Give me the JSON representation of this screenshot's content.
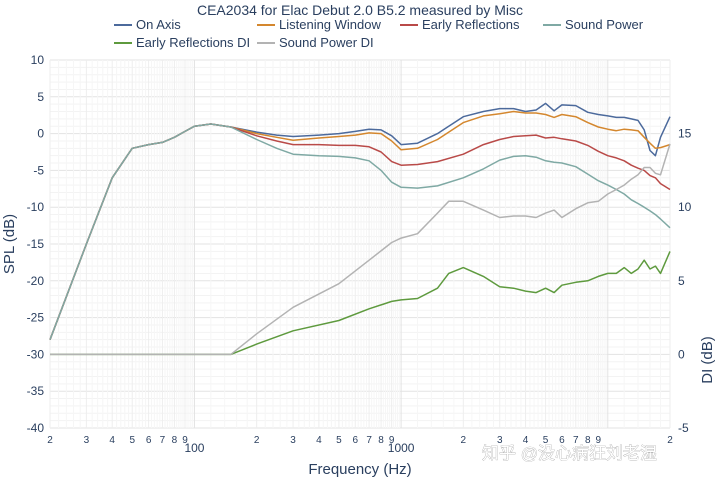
{
  "chart_data": {
    "type": "line",
    "title": "CEA2034 for Elac Debut 2.0 B5.2 measured by Misc",
    "xlabel": "Frequency (Hz)",
    "ylabel": "SPL (dB)",
    "y2label": "DI (dB)",
    "xscale": "log",
    "xlim": [
      20,
      20000
    ],
    "ylim": [
      -40,
      10
    ],
    "y2lim": [
      -5,
      20
    ],
    "x_tick_labels": {
      "major": [
        {
          "value": 100,
          "label": "100"
        },
        {
          "value": 1000,
          "label": "1000"
        }
      ],
      "minor": [
        {
          "value": 20,
          "label": "2"
        },
        {
          "value": 30,
          "label": "3"
        },
        {
          "value": 40,
          "label": "4"
        },
        {
          "value": 50,
          "label": "5"
        },
        {
          "value": 60,
          "label": "6"
        },
        {
          "value": 70,
          "label": "7"
        },
        {
          "value": 80,
          "label": "8"
        },
        {
          "value": 90,
          "label": "9"
        },
        {
          "value": 200,
          "label": "2"
        },
        {
          "value": 300,
          "label": "3"
        },
        {
          "value": 400,
          "label": "4"
        },
        {
          "value": 500,
          "label": "5"
        },
        {
          "value": 600,
          "label": "6"
        },
        {
          "value": 700,
          "label": "7"
        },
        {
          "value": 800,
          "label": "8"
        },
        {
          "value": 900,
          "label": "9"
        },
        {
          "value": 2000,
          "label": "2"
        },
        {
          "value": 3000,
          "label": "3"
        },
        {
          "value": 4000,
          "label": "4"
        },
        {
          "value": 5000,
          "label": "5"
        },
        {
          "value": 6000,
          "label": "6"
        },
        {
          "value": 7000,
          "label": "7"
        },
        {
          "value": 8000,
          "label": "8"
        },
        {
          "value": 9000,
          "label": "9"
        },
        {
          "value": 20000,
          "label": "2"
        }
      ]
    },
    "y_ticks": [
      10,
      5,
      0,
      -5,
      -10,
      -15,
      -20,
      -25,
      -30,
      -35,
      -40
    ],
    "y2_ticks": [
      15,
      10,
      5,
      0,
      -5
    ],
    "legend": "top",
    "series": [
      {
        "name": "On Axis",
        "axis": "y",
        "color": "#4c6a9c",
        "x": [
          20,
          30,
          40,
          50,
          60,
          70,
          80,
          90,
          100,
          120,
          150,
          200,
          250,
          300,
          400,
          500,
          600,
          700,
          800,
          900,
          1000,
          1200,
          1500,
          2000,
          2500,
          3000,
          3500,
          4000,
          4500,
          5000,
          5500,
          6000,
          7000,
          8000,
          9000,
          10000,
          11000,
          12000,
          13000,
          14000,
          15000,
          16000,
          17000,
          18000,
          20000
        ],
        "y": [
          -28,
          -15,
          -6,
          -2,
          -1.5,
          -1.2,
          -0.5,
          0.3,
          1,
          1.3,
          0.9,
          0.2,
          -0.2,
          -0.4,
          -0.2,
          0,
          0.3,
          0.6,
          0.5,
          -0.3,
          -1.5,
          -1.3,
          0,
          2.3,
          3,
          3.4,
          3.4,
          3,
          3.2,
          4.1,
          3.1,
          3.9,
          3.8,
          2.9,
          2.6,
          2.4,
          2.2,
          2.2,
          2,
          1.8,
          0.5,
          -2.3,
          -3,
          -0.5,
          2.3
        ]
      },
      {
        "name": "Listening Window",
        "axis": "y",
        "color": "#d4872e",
        "x": [
          20,
          30,
          40,
          50,
          60,
          70,
          80,
          90,
          100,
          120,
          150,
          200,
          250,
          300,
          400,
          500,
          600,
          700,
          800,
          900,
          1000,
          1200,
          1500,
          2000,
          2500,
          3000,
          3500,
          4000,
          4500,
          5000,
          5500,
          6000,
          7000,
          8000,
          9000,
          10000,
          11000,
          12000,
          13000,
          14000,
          15000,
          16000,
          17000,
          18000,
          20000
        ],
        "y": [
          -28,
          -15,
          -6,
          -2,
          -1.5,
          -1.2,
          -0.5,
          0.3,
          1,
          1.3,
          0.9,
          0,
          -0.5,
          -0.9,
          -0.6,
          -0.4,
          -0.2,
          0.1,
          0,
          -1,
          -2.2,
          -2,
          -0.8,
          1.5,
          2.4,
          2.7,
          3,
          2.8,
          2.8,
          2.6,
          2.2,
          2.6,
          2.3,
          1.5,
          0.9,
          0.6,
          0.4,
          0.6,
          0.5,
          0.4,
          -0.5,
          -1.3,
          -2,
          -1.9,
          -1.5
        ]
      },
      {
        "name": "Early Reflections",
        "axis": "y",
        "color": "#b94a48",
        "x": [
          20,
          30,
          40,
          50,
          60,
          70,
          80,
          90,
          100,
          120,
          150,
          200,
          250,
          300,
          400,
          500,
          600,
          700,
          800,
          900,
          1000,
          1200,
          1500,
          2000,
          2500,
          3000,
          3500,
          4000,
          4500,
          5000,
          5500,
          6000,
          7000,
          8000,
          9000,
          10000,
          11000,
          12000,
          13000,
          14000,
          15000,
          16000,
          17000,
          18000,
          20000
        ],
        "y": [
          -28,
          -15,
          -6,
          -2,
          -1.5,
          -1.2,
          -0.5,
          0.3,
          1,
          1.3,
          0.9,
          -0.3,
          -1,
          -1.5,
          -1.5,
          -1.6,
          -1.6,
          -1.8,
          -2.5,
          -3.8,
          -4.3,
          -4.2,
          -3.8,
          -2.8,
          -1.5,
          -0.8,
          -0.4,
          -0.3,
          -0.2,
          -0.6,
          -0.5,
          -0.7,
          -1,
          -1.6,
          -2.4,
          -3,
          -3.3,
          -3.7,
          -4.3,
          -4.7,
          -5,
          -5.7,
          -6,
          -6.8,
          -7.6
        ]
      },
      {
        "name": "Sound Power",
        "axis": "y",
        "color": "#7fa9a4",
        "x": [
          20,
          30,
          40,
          50,
          60,
          70,
          80,
          90,
          100,
          120,
          150,
          200,
          250,
          300,
          400,
          500,
          600,
          700,
          800,
          900,
          1000,
          1200,
          1500,
          2000,
          2500,
          3000,
          3500,
          4000,
          4500,
          5000,
          5500,
          6000,
          7000,
          8000,
          9000,
          10000,
          11000,
          12000,
          13000,
          14000,
          15000,
          16000,
          17000,
          18000,
          20000
        ],
        "y": [
          -28,
          -15,
          -6,
          -2,
          -1.5,
          -1.2,
          -0.5,
          0.3,
          1,
          1.3,
          0.9,
          -0.8,
          -2,
          -2.8,
          -3,
          -3.1,
          -3.3,
          -3.7,
          -5,
          -6.6,
          -7.3,
          -7.4,
          -7.1,
          -6,
          -4.8,
          -3.6,
          -3.1,
          -3,
          -3.2,
          -3.7,
          -3.9,
          -4,
          -4.5,
          -5.5,
          -6.4,
          -7,
          -7.6,
          -8.2,
          -9,
          -9.5,
          -10,
          -10.5,
          -11,
          -11.6,
          -12.8
        ]
      },
      {
        "name": "Early Reflections DI",
        "axis": "y2",
        "color": "#5e9a3e",
        "x": [
          20,
          40,
          60,
          80,
          100,
          120,
          150,
          200,
          300,
          500,
          700,
          900,
          1000,
          1200,
          1500,
          1700,
          2000,
          2500,
          3000,
          3500,
          4000,
          4500,
          5000,
          5500,
          6000,
          7000,
          8000,
          9000,
          10000,
          11000,
          12000,
          13000,
          14000,
          15000,
          16000,
          17000,
          18000,
          20000
        ],
        "y": [
          0,
          0,
          0,
          0,
          0,
          0,
          0,
          0.7,
          1.6,
          2.3,
          3.1,
          3.6,
          3.7,
          3.8,
          4.5,
          5.5,
          5.9,
          5.3,
          4.6,
          4.5,
          4.3,
          4.2,
          4.5,
          4.2,
          4.7,
          4.9,
          5,
          5.3,
          5.5,
          5.5,
          5.9,
          5.5,
          5.8,
          6.4,
          5.8,
          6,
          5.5,
          7
        ]
      },
      {
        "name": "Sound Power DI",
        "axis": "y2",
        "color": "#b3b3b3",
        "x": [
          20,
          40,
          60,
          80,
          100,
          120,
          150,
          200,
          300,
          500,
          700,
          900,
          1000,
          1200,
          1500,
          1700,
          2000,
          2500,
          3000,
          3500,
          4000,
          4500,
          5000,
          5500,
          6000,
          7000,
          8000,
          9000,
          10000,
          11000,
          12000,
          13000,
          14000,
          15000,
          16000,
          17000,
          18000,
          20000
        ],
        "y": [
          0,
          0,
          0,
          0,
          0,
          0,
          0,
          1.4,
          3.2,
          4.8,
          6.4,
          7.6,
          7.9,
          8.2,
          9.6,
          10.4,
          10.4,
          9.8,
          9.3,
          9.4,
          9.4,
          9.3,
          9.6,
          9.8,
          9.3,
          9.9,
          10.3,
          10.4,
          10.9,
          11.2,
          11.5,
          11.9,
          12.2,
          12.7,
          12.7,
          12.3,
          12.2,
          14.3
        ]
      }
    ]
  },
  "watermark": "知乎 @没心病狂刘老湿"
}
